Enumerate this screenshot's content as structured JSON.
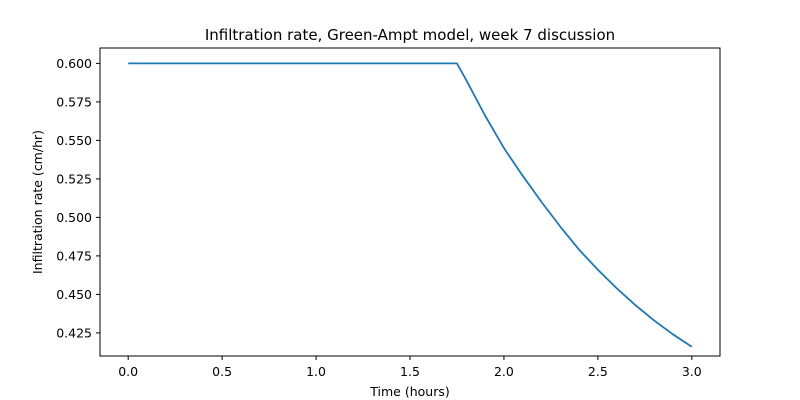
{
  "chart_data": {
    "type": "line",
    "title": "Infiltration rate, Green-Ampt model, week 7 discussion",
    "xlabel": "Time (hours)",
    "ylabel": "Infiltration rate (cm/hr)",
    "xlim": [
      -0.15,
      3.15
    ],
    "ylim": [
      0.41,
      0.61
    ],
    "x_ticks": [
      0.0,
      0.5,
      1.0,
      1.5,
      2.0,
      2.5,
      3.0
    ],
    "x_tick_labels": [
      "0.0",
      "0.5",
      "1.0",
      "1.5",
      "2.0",
      "2.5",
      "3.0"
    ],
    "y_ticks": [
      0.425,
      0.45,
      0.475,
      0.5,
      0.525,
      0.55,
      0.575,
      0.6
    ],
    "y_tick_labels": [
      "0.425",
      "0.450",
      "0.475",
      "0.500",
      "0.525",
      "0.550",
      "0.575",
      "0.600"
    ],
    "grid": false,
    "series": [
      {
        "color": "#1f77b4",
        "x": [
          0.0,
          0.5,
          1.0,
          1.5,
          1.75,
          1.8,
          1.9,
          2.0,
          2.1,
          2.2,
          2.3,
          2.4,
          2.5,
          2.6,
          2.7,
          2.8,
          2.9,
          3.0
        ],
        "y": [
          0.6,
          0.6,
          0.6,
          0.6,
          0.6,
          0.589,
          0.566,
          0.545,
          0.527,
          0.51,
          0.494,
          0.479,
          0.466,
          0.454,
          0.443,
          0.433,
          0.424,
          0.416
        ]
      }
    ]
  }
}
